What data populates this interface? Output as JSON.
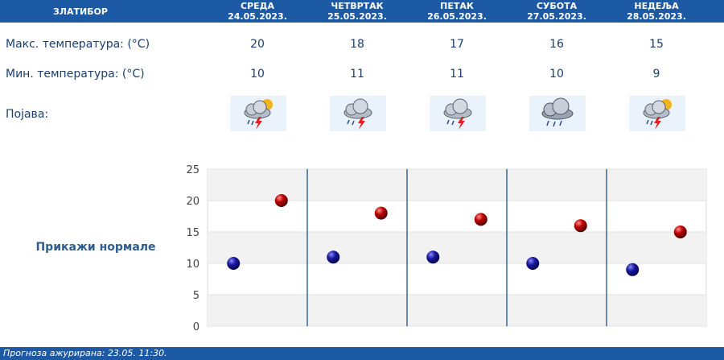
{
  "location": "ЗЛАТИБОР",
  "days": [
    {
      "name": "СРЕДА",
      "date": "24.05.2023.",
      "max": "20",
      "min": "10",
      "icon": "sun-cloud-thunder-rain-icon"
    },
    {
      "name": "ЧЕТВРТАК",
      "date": "25.05.2023.",
      "max": "18",
      "min": "11",
      "icon": "cloud-thunder-rain-icon"
    },
    {
      "name": "ПЕТАК",
      "date": "26.05.2023.",
      "max": "17",
      "min": "11",
      "icon": "cloud-thunder-rain-icon"
    },
    {
      "name": "СУБОТА",
      "date": "27.05.2023.",
      "max": "16",
      "min": "10",
      "icon": "cloud-rain-icon"
    },
    {
      "name": "НЕДЕЉА",
      "date": "28.05.2023.",
      "max": "15",
      "min": "9",
      "icon": "sun-cloud-thunder-rain-icon"
    }
  ],
  "labels": {
    "max": "Макс. температура: (°C)",
    "min": "Мин. температура: (°C)",
    "phenomenon": "Појава:"
  },
  "normals_link": "Прикажи нормале",
  "footer": "Прогноза ажурирана:  23.05.  11:30.",
  "colors": {
    "header": "#1d5aa6",
    "min_marker": "#1a1aa0",
    "max_marker": "#c00000"
  },
  "chart_data": {
    "type": "scatter",
    "ylim": [
      0,
      25
    ],
    "yticks": [
      "0",
      "5",
      "10",
      "15",
      "20",
      "25"
    ],
    "series": [
      {
        "values": [
          10,
          11,
          11,
          10,
          9
        ]
      },
      {
        "values": [
          20,
          18,
          17,
          16,
          15
        ]
      }
    ]
  }
}
